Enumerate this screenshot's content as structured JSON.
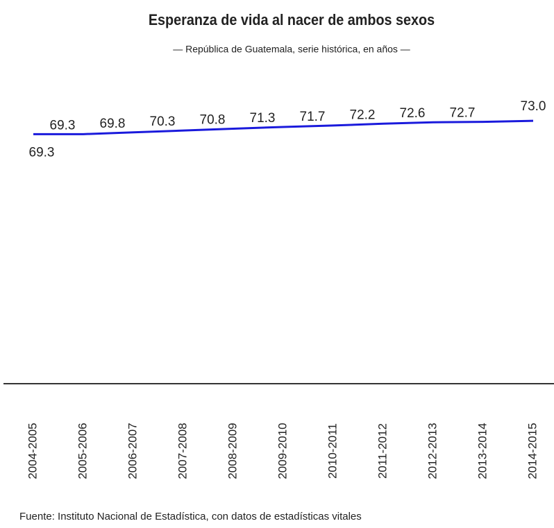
{
  "chart_data": {
    "type": "line",
    "title": "Esperanza de vida al nacer de ambos sexos",
    "subtitle": "— República de Guatemala, serie histórica, en años —",
    "source": "Fuente: Instituto Nacional de Estadística, con datos de estadísticas vitales",
    "categories": [
      "2004-2005",
      "2005-2006",
      "2006-2007",
      "2007-2008",
      "2008-2009",
      "2009-2010",
      "2010-2011",
      "2011-2012",
      "2012-2013",
      "2013-2014",
      "2014-2015"
    ],
    "series": [
      {
        "name": null,
        "color": "#1a1adc",
        "values": [
          69.3,
          69.3,
          69.8,
          70.3,
          70.8,
          71.3,
          71.7,
          72.2,
          72.6,
          72.7,
          73
        ],
        "value_labels": [
          "69.3",
          "69.3",
          "69.8",
          "70.3",
          "70.8",
          "71.3",
          "71.7",
          "72.2",
          "72.6",
          "72.7",
          "73.0"
        ]
      }
    ],
    "ylim": [
      0,
      100
    ]
  }
}
